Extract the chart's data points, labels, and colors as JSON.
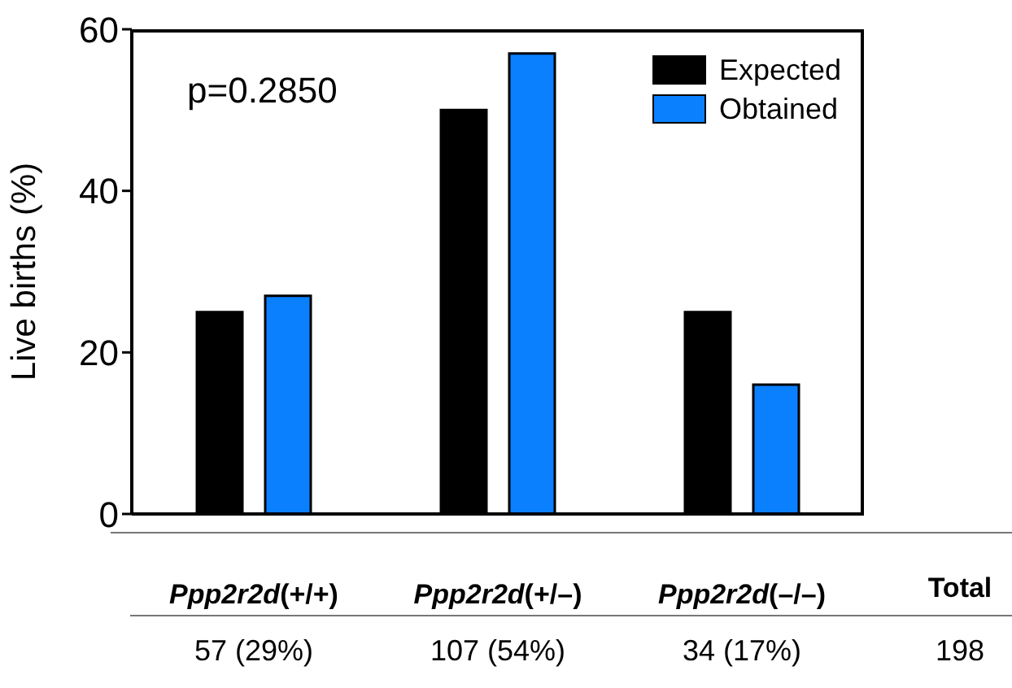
{
  "chart_data": {
    "type": "bar",
    "ylabel": "Live births (%)",
    "categories": [
      "Ppp2r2d(+/+)",
      "Ppp2r2d(+/–)",
      "Ppp2r2d(–/–)"
    ],
    "series": [
      {
        "name": "Expected",
        "color": "#000000",
        "values": [
          25,
          50,
          25
        ]
      },
      {
        "name": "Obtained",
        "color": "#0a80ff",
        "values": [
          27,
          57,
          16
        ]
      }
    ],
    "ylim": [
      0,
      60
    ],
    "yticks": [
      0,
      20,
      40,
      60
    ],
    "grid": false,
    "legend": "top right",
    "annotations": [
      "p=0.2850",
      "Total",
      "57 (29%)",
      "107 (54%)",
      "34 (17%)",
      "198"
    ]
  }
}
